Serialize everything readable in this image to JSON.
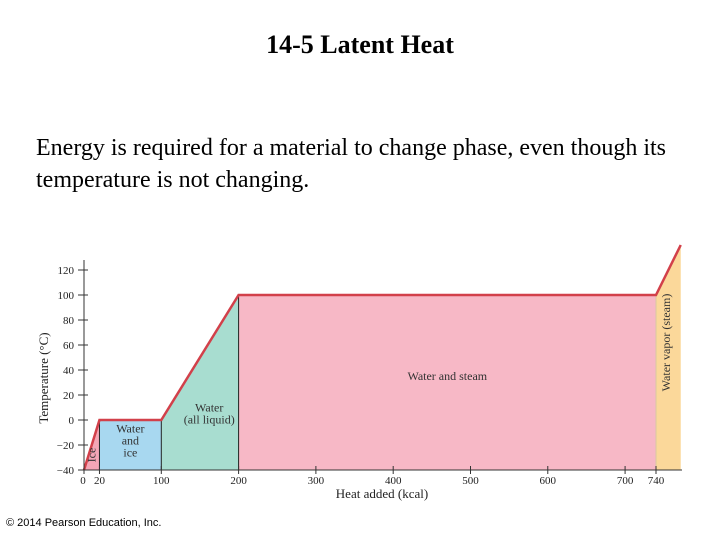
{
  "slide": {
    "title": "14-5 Latent Heat",
    "body": "Energy is required for a material to change phase, even though its temperature is not changing.",
    "copyright": "© 2014 Pearson Education, Inc."
  },
  "colors": {
    "curve": "#d2404a",
    "ice": "#f4a6b6",
    "water_ice": "#a8d8f0",
    "water": "#a8ddd0",
    "water_steam": "#f7b8c6",
    "vapor": "#fbd89a",
    "axis": "#333333"
  },
  "chart_data": {
    "type": "line",
    "xlabel": "Heat added (kcal)",
    "ylabel": "Temperature (°C)",
    "xlim": [
      0,
      740
    ],
    "ylim": [
      -40,
      120
    ],
    "x_ticks": [
      0,
      20,
      100,
      200,
      300,
      400,
      500,
      600,
      700,
      740
    ],
    "y_ticks": [
      -40,
      -20,
      0,
      20,
      40,
      60,
      80,
      100,
      120
    ],
    "series": [
      {
        "x": [
          0,
          20,
          100,
          200,
          740,
          772
        ],
        "y": [
          -40,
          0,
          0,
          100,
          100,
          140
        ]
      }
    ],
    "regions": [
      {
        "label": "Ice",
        "x": [
          0,
          20
        ]
      },
      {
        "label": "Water and ice",
        "lines": [
          "Water",
          "and",
          "ice"
        ],
        "x": [
          20,
          100
        ]
      },
      {
        "label": "Water (all liquid)",
        "lines": [
          "Water",
          "(all liquid)"
        ],
        "x": [
          100,
          200
        ]
      },
      {
        "label": "Water and steam",
        "x": [
          200,
          740
        ]
      },
      {
        "label": "Water vapor (steam)",
        "x": [
          740,
          772
        ]
      }
    ]
  }
}
